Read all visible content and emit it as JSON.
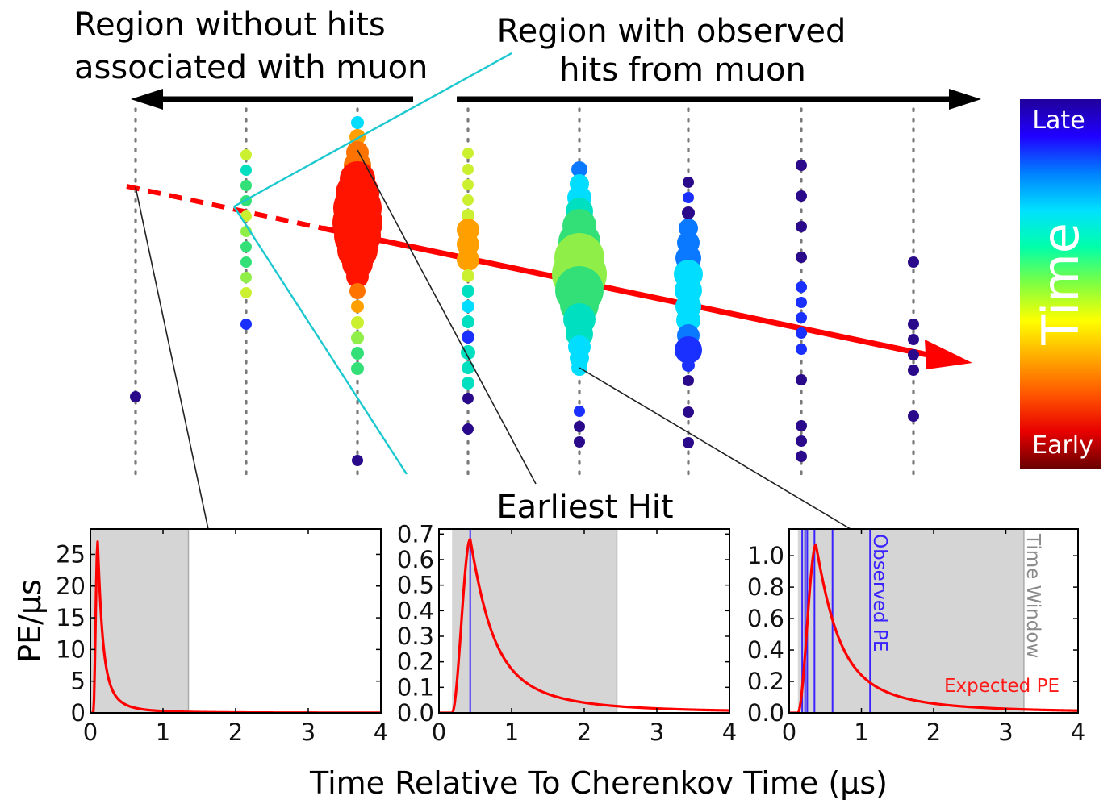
{
  "annotations": {
    "left_region": [
      "Region without hits",
      "associated with muon"
    ],
    "right_region": [
      "Region with observed",
      "hits from muon"
    ],
    "earliest_hit": "Earliest Hit"
  },
  "colorbar": {
    "title": "Time",
    "top_label": "Late",
    "bottom_label": "Early",
    "colors": [
      "#6a0000",
      "#e80000",
      "#ff5500",
      "#ffaa00",
      "#ffff00",
      "#80ff40",
      "#00ffaa",
      "#00e0ff",
      "#0080ff",
      "#2000ff",
      "#20009a"
    ]
  },
  "shared_axes": {
    "ylabel": "PE/μs",
    "xlabel": "Time Relative To Cherenkov Time (μs)"
  },
  "legend": {
    "observed": "Observed PE",
    "expected": "Expected PE",
    "window": "Time Window"
  },
  "chart_data": [
    {
      "type": "line",
      "panel": "left",
      "series": [
        {
          "name": "Expected PE",
          "color": "#ff0000"
        }
      ],
      "curve": {
        "onset": 0.04,
        "peak_time": 0.1,
        "peak": 27,
        "decay": 0.5
      },
      "time_window": [
        0.0,
        1.35
      ],
      "observed_hits": [],
      "xlim": [
        0,
        4
      ],
      "ylim": [
        0,
        29
      ],
      "xticks": [
        0,
        1,
        2,
        3,
        4
      ],
      "yticks": [
        0,
        5,
        10,
        15,
        20,
        25
      ],
      "xtick_labels": [
        "0",
        "1",
        "2",
        "3",
        "4"
      ],
      "ytick_labels": [
        "0",
        "5",
        "10",
        "15",
        "20",
        "25"
      ]
    },
    {
      "type": "line",
      "panel": "middle",
      "series": [
        {
          "name": "Expected PE",
          "color": "#ff0000"
        }
      ],
      "curve": {
        "onset": 0.18,
        "peak_time": 0.43,
        "peak": 0.68,
        "decay": 2.3
      },
      "time_window": [
        0.18,
        2.45
      ],
      "observed_hits": [
        0.43
      ],
      "xlim": [
        0,
        4
      ],
      "ylim": [
        0,
        0.72
      ],
      "xticks": [
        0,
        1,
        2,
        3,
        4
      ],
      "yticks": [
        0.0,
        0.1,
        0.2,
        0.3,
        0.4,
        0.5,
        0.6,
        0.7
      ],
      "xtick_labels": [
        "0",
        "1",
        "2",
        "3",
        "4"
      ],
      "ytick_labels": [
        "0.0",
        "0.1",
        "0.2",
        "0.3",
        "0.4",
        "0.5",
        "0.6",
        "0.7"
      ]
    },
    {
      "type": "line",
      "panel": "right",
      "series": [
        {
          "name": "Expected PE",
          "color": "#ff0000"
        }
      ],
      "curve": {
        "onset": 0.12,
        "peak_time": 0.37,
        "peak": 1.07,
        "decay": 2.3
      },
      "time_window": [
        0.12,
        3.25
      ],
      "observed_hits": [
        0.18,
        0.22,
        0.25,
        0.35,
        0.6,
        1.12
      ],
      "xlim": [
        0,
        4
      ],
      "ylim": [
        0,
        1.17
      ],
      "xticks": [
        0,
        1,
        2,
        3,
        4
      ],
      "yticks": [
        0.0,
        0.2,
        0.4,
        0.6,
        0.8,
        1.0
      ],
      "xtick_labels": [
        "0",
        "1",
        "2",
        "3",
        "4"
      ],
      "ytick_labels": [
        "0.0",
        "0.2",
        "0.4",
        "0.6",
        "0.8",
        "1.0"
      ]
    }
  ]
}
